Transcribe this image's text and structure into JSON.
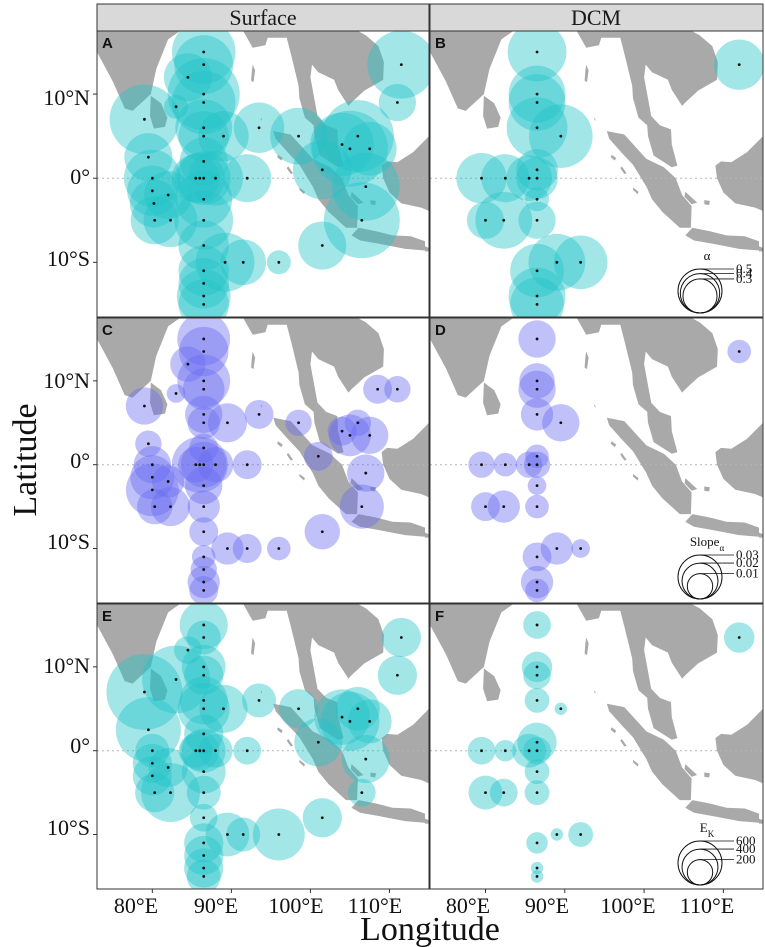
{
  "figure": {
    "columns": [
      "Surface",
      "DCM"
    ],
    "xlabel": "Longitude",
    "ylabel": "Latitude",
    "x_ticks": [
      "80°E",
      "90°E",
      "100°E",
      "110°E"
    ],
    "y_ticks": [
      "10°N",
      "0°",
      "10°S"
    ],
    "x_tick_values": [
      80,
      90,
      100,
      110
    ],
    "y_tick_values": [
      10,
      0,
      -10
    ],
    "land_color": "#a9a9a9",
    "strip_color": "#d9d9d9",
    "zero_line": "dotted"
  },
  "panels": [
    {
      "tag": "A",
      "row": 0,
      "col": 0
    },
    {
      "tag": "B",
      "row": 0,
      "col": 1
    },
    {
      "tag": "C",
      "row": 1,
      "col": 0
    },
    {
      "tag": "D",
      "row": 1,
      "col": 1
    },
    {
      "tag": "E",
      "row": 2,
      "col": 0
    },
    {
      "tag": "F",
      "row": 2,
      "col": 1
    }
  ],
  "legends": [
    {
      "row": 0,
      "title": "α",
      "sub": "",
      "labels": [
        "0.5",
        "0.4",
        "0.3"
      ],
      "values": [
        0.5,
        0.4,
        0.3
      ]
    },
    {
      "row": 1,
      "title": "Slope",
      "sub": "α",
      "labels": [
        "0.03",
        "0.02",
        "0.01"
      ],
      "values": [
        0.03,
        0.02,
        0.01
      ]
    },
    {
      "row": 2,
      "title": "E",
      "sub": "K",
      "labels": [
        "600",
        "400",
        "200"
      ],
      "values": [
        600,
        400,
        200
      ]
    }
  ],
  "chart_data": [
    {
      "type": "scatter",
      "panel": "A",
      "variable": "α",
      "layer": "Surface",
      "color": "#22c4c8",
      "xlim": [
        73,
        115
      ],
      "ylim": [
        -16.5,
        17.5
      ],
      "points": [
        [
          79,
          7,
          0.42
        ],
        [
          79.5,
          2.5,
          0.2
        ],
        [
          80,
          0,
          0.28
        ],
        [
          80,
          -1.5,
          0.22
        ],
        [
          80.2,
          -3,
          0.2
        ],
        [
          80.3,
          -5,
          0.2
        ],
        [
          82,
          -2,
          0.2
        ],
        [
          82.3,
          -5,
          0.25
        ],
        [
          83,
          8.5,
          0.05
        ],
        [
          84.5,
          12,
          0.2
        ],
        [
          85.5,
          0,
          0.2
        ],
        [
          86,
          0,
          0.22
        ],
        [
          86.5,
          15,
          0.35
        ],
        [
          86.5,
          13.5,
          0.3
        ],
        [
          86.5,
          10,
          0.45
        ],
        [
          86.5,
          9,
          0.35
        ],
        [
          86.5,
          6,
          0.28
        ],
        [
          86.5,
          5,
          0.22
        ],
        [
          86.5,
          2,
          0.2
        ],
        [
          86.5,
          0,
          0.25
        ],
        [
          86.5,
          -2.5,
          0.28
        ],
        [
          86.5,
          -5,
          0.3
        ],
        [
          86.5,
          -8,
          0.22
        ],
        [
          86.5,
          -11,
          0.22
        ],
        [
          86.5,
          -12.5,
          0.22
        ],
        [
          86.5,
          -14,
          0.25
        ],
        [
          86.5,
          -15,
          0.22
        ],
        [
          88,
          0,
          0.26
        ],
        [
          89,
          5,
          0.22
        ],
        [
          89.2,
          -10,
          0.3
        ],
        [
          91.5,
          -10,
          0.18
        ],
        [
          92,
          0,
          0.2
        ],
        [
          93.5,
          6,
          0.22
        ],
        [
          96,
          -10,
          0.05
        ],
        [
          98.5,
          5,
          0.28
        ],
        [
          101.5,
          1,
          0.3
        ],
        [
          101.5,
          -8,
          0.2
        ],
        [
          104,
          4,
          0.35
        ],
        [
          105,
          3.5,
          0.5
        ],
        [
          106,
          5,
          0.45
        ],
        [
          107.5,
          3.5,
          0.25
        ],
        [
          107,
          -1,
          0.4
        ],
        [
          106.5,
          -5,
          0.5
        ],
        [
          111,
          9,
          0.12
        ],
        [
          111.5,
          13.5,
          0.4
        ]
      ]
    },
    {
      "type": "scatter",
      "panel": "B",
      "variable": "α",
      "layer": "DCM",
      "color": "#22c4c8",
      "xlim": [
        73,
        115
      ],
      "ylim": [
        -16.5,
        17.5
      ],
      "points": [
        [
          79.5,
          0,
          0.22
        ],
        [
          80,
          -5,
          0.12
        ],
        [
          82.3,
          -5,
          0.28
        ],
        [
          82.5,
          0,
          0.2
        ],
        [
          85.5,
          0,
          0.18
        ],
        [
          86.5,
          15,
          0.3
        ],
        [
          86.5,
          10,
          0.28
        ],
        [
          86.5,
          9,
          0.28
        ],
        [
          86.5,
          6,
          0.32
        ],
        [
          86.5,
          1,
          0.15
        ],
        [
          86.5,
          0,
          0.15
        ],
        [
          86.5,
          -2.5,
          0.05
        ],
        [
          86.5,
          -5,
          0.12
        ],
        [
          86.5,
          -11,
          0.25
        ],
        [
          86.5,
          -14,
          0.28
        ],
        [
          86.5,
          -15,
          0.25
        ],
        [
          89,
          -10,
          0.28
        ],
        [
          89.5,
          5,
          0.35
        ],
        [
          92,
          -10,
          0.25
        ],
        [
          112,
          13.5,
          0.22
        ]
      ]
    },
    {
      "type": "scatter",
      "panel": "C",
      "variable": "Slope_α",
      "layer": "Surface",
      "color": "#6a6bf0",
      "xlim": [
        73,
        115
      ],
      "ylim": [
        -16.5,
        17.5
      ],
      "points": [
        [
          79,
          7,
          0.02
        ],
        [
          79.5,
          2.5,
          0.01
        ],
        [
          80,
          0,
          0.02
        ],
        [
          80,
          -1.5,
          0.028
        ],
        [
          80,
          -3,
          0.04
        ],
        [
          80.3,
          -5,
          0.018
        ],
        [
          82,
          -2,
          0.015
        ],
        [
          82.3,
          -5,
          0.022
        ],
        [
          83,
          8.5,
          0.005
        ],
        [
          84.5,
          12,
          0.018
        ],
        [
          85.5,
          0,
          0.018
        ],
        [
          86,
          0,
          0.045
        ],
        [
          86.5,
          15,
          0.04
        ],
        [
          86.5,
          13.5,
          0.035
        ],
        [
          86.5,
          10,
          0.04
        ],
        [
          86.5,
          9,
          0.025
        ],
        [
          86.5,
          6,
          0.02
        ],
        [
          86.5,
          5,
          0.015
        ],
        [
          86.5,
          2,
          0.012
        ],
        [
          86.5,
          0,
          0.03
        ],
        [
          86.5,
          -2.5,
          0.02
        ],
        [
          86.5,
          -5,
          0.015
        ],
        [
          86.5,
          -8,
          0.012
        ],
        [
          86.5,
          -11,
          0.008
        ],
        [
          86.5,
          -12.5,
          0.01
        ],
        [
          86.5,
          -14,
          0.015
        ],
        [
          86.5,
          -15,
          0.012
        ],
        [
          88,
          0,
          0.018
        ],
        [
          89.5,
          5,
          0.022
        ],
        [
          89.5,
          -10,
          0.015
        ],
        [
          92,
          -10,
          0.012
        ],
        [
          92,
          0,
          0.012
        ],
        [
          93.5,
          6,
          0.012
        ],
        [
          96,
          -10,
          0.008
        ],
        [
          98.5,
          5,
          0.01
        ],
        [
          101,
          1,
          0.012
        ],
        [
          101.5,
          -8,
          0.018
        ],
        [
          104,
          4,
          0.012
        ],
        [
          105,
          3.5,
          0.025
        ],
        [
          106,
          5,
          0.01
        ],
        [
          107.5,
          3.5,
          0.02
        ],
        [
          107,
          -1,
          0.02
        ],
        [
          106.5,
          -5,
          0.028
        ],
        [
          108.5,
          9,
          0.012
        ],
        [
          111,
          9,
          0.01
        ]
      ]
    },
    {
      "type": "scatter",
      "panel": "D",
      "variable": "Slope_α",
      "layer": "DCM",
      "color": "#6a6bf0",
      "xlim": [
        73,
        115
      ],
      "ylim": [
        -16.5,
        17.5
      ],
      "points": [
        [
          79.5,
          0,
          0.01
        ],
        [
          80,
          -5,
          0.012
        ],
        [
          82.3,
          -5,
          0.015
        ],
        [
          82.5,
          0,
          0.008
        ],
        [
          85.5,
          0,
          0.01
        ],
        [
          86.5,
          15,
          0.02
        ],
        [
          86.5,
          10,
          0.018
        ],
        [
          86.5,
          9,
          0.02
        ],
        [
          86.5,
          6,
          0.015
        ],
        [
          86.5,
          1,
          0.008
        ],
        [
          86.5,
          0,
          0.01
        ],
        [
          86.5,
          -2.5,
          0.005
        ],
        [
          86.5,
          -5,
          0.008
        ],
        [
          86.5,
          -11,
          0.012
        ],
        [
          86.5,
          -14,
          0.015
        ],
        [
          86.5,
          -15,
          0.008
        ],
        [
          89,
          -10,
          0.015
        ],
        [
          89.5,
          5,
          0.02
        ],
        [
          92,
          -10,
          0.005
        ],
        [
          112,
          13.5,
          0.008
        ]
      ]
    },
    {
      "type": "scatter",
      "panel": "E",
      "variable": "E_K",
      "layer": "Surface",
      "color": "#22c4c8",
      "xlim": [
        73,
        115
      ],
      "ylim": [
        -16.5,
        17.5
      ],
      "points": [
        [
          79,
          7,
          750
        ],
        [
          79.5,
          2.5,
          550
        ],
        [
          80,
          0,
          150
        ],
        [
          80,
          -1.5,
          200
        ],
        [
          80,
          -3,
          200
        ],
        [
          80.3,
          -5,
          200
        ],
        [
          82,
          -2,
          200
        ],
        [
          82.3,
          -5,
          450
        ],
        [
          83,
          8.5,
          600
        ],
        [
          84.5,
          12,
          100
        ],
        [
          85.5,
          0,
          150
        ],
        [
          86,
          0,
          200
        ],
        [
          86.5,
          15,
          300
        ],
        [
          86.5,
          13.5,
          150
        ],
        [
          86.5,
          10,
          250
        ],
        [
          86.5,
          9,
          200
        ],
        [
          86.5,
          6,
          300
        ],
        [
          86.5,
          5,
          350
        ],
        [
          86.5,
          2,
          200
        ],
        [
          86.5,
          0,
          250
        ],
        [
          86.5,
          -2.5,
          250
        ],
        [
          86.5,
          -5,
          150
        ],
        [
          86.5,
          -8,
          100
        ],
        [
          86.5,
          -11,
          200
        ],
        [
          86.5,
          -12.5,
          200
        ],
        [
          86.5,
          -14,
          200
        ],
        [
          86.5,
          -15,
          150
        ],
        [
          88,
          0,
          150
        ],
        [
          89,
          5,
          300
        ],
        [
          89.5,
          -10,
          250
        ],
        [
          91.5,
          -10,
          150
        ],
        [
          92,
          0,
          100
        ],
        [
          93.5,
          6,
          150
        ],
        [
          96,
          -10,
          350
        ],
        [
          98.5,
          5,
          200
        ],
        [
          101,
          1,
          300
        ],
        [
          101.5,
          -8,
          200
        ],
        [
          104,
          4,
          400
        ],
        [
          105,
          3.5,
          450
        ],
        [
          106,
          5,
          250
        ],
        [
          107.5,
          3.5,
          250
        ],
        [
          107,
          -1,
          300
        ],
        [
          106.5,
          -5,
          100
        ],
        [
          111,
          9,
          200
        ],
        [
          111.5,
          13.5,
          200
        ]
      ]
    },
    {
      "type": "scatter",
      "panel": "F",
      "variable": "E_K",
      "layer": "DCM",
      "color": "#22c4c8",
      "xlim": [
        73,
        115
      ],
      "ylim": [
        -16.5,
        17.5
      ],
      "points": [
        [
          79.5,
          0,
          100
        ],
        [
          80,
          -5,
          150
        ],
        [
          82.3,
          -5,
          100
        ],
        [
          82.5,
          0,
          60
        ],
        [
          85.5,
          0,
          150
        ],
        [
          86.5,
          15,
          100
        ],
        [
          86.5,
          10,
          120
        ],
        [
          86.5,
          9,
          100
        ],
        [
          86.5,
          6,
          80
        ],
        [
          86.5,
          1,
          200
        ],
        [
          86.5,
          0,
          100
        ],
        [
          86.5,
          -2.5,
          80
        ],
        [
          86.5,
          -5,
          80
        ],
        [
          86.5,
          -11,
          60
        ],
        [
          86.5,
          -14,
          20
        ],
        [
          86.5,
          -15,
          20
        ],
        [
          89,
          -10,
          20
        ],
        [
          89.5,
          5,
          20
        ],
        [
          92,
          -10,
          80
        ],
        [
          112,
          13.5,
          120
        ]
      ]
    }
  ]
}
